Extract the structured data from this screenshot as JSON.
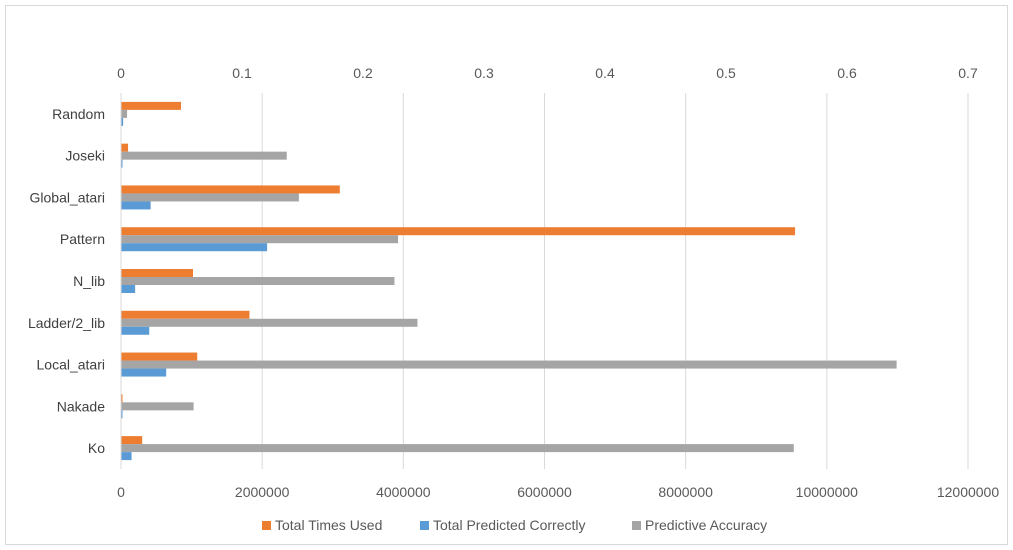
{
  "chart_data": {
    "type": "bar",
    "orientation": "horizontal",
    "categories": [
      "Random",
      "Joseki",
      "Global_atari",
      "Pattern",
      "N_lib",
      "Ladder/2_lib",
      "Local_atari",
      "Nakade",
      "Ko"
    ],
    "series": [
      {
        "name": "Total Times Used",
        "axis": "primary",
        "color": "#ED7D31",
        "values": [
          850000,
          100000,
          3100000,
          9550000,
          1020000,
          1820000,
          1080000,
          20000,
          300000
        ]
      },
      {
        "name": "Total Predicted Correctly",
        "axis": "primary",
        "color": "#5B9BD5",
        "values": [
          30000,
          10000,
          420000,
          2070000,
          200000,
          400000,
          640000,
          10000,
          150000
        ]
      },
      {
        "name": "Predictive Accuracy",
        "axis": "secondary",
        "color": "#A5A5A5",
        "values": [
          0.005,
          0.137,
          0.147,
          0.229,
          0.226,
          0.245,
          0.641,
          0.06,
          0.556
        ]
      }
    ],
    "primary_axis": {
      "position": "bottom",
      "range": [
        0,
        12000000
      ],
      "ticks": [
        "0",
        "2000000",
        "4000000",
        "6000000",
        "8000000",
        "10000000",
        "12000000"
      ]
    },
    "secondary_axis": {
      "position": "top",
      "range": [
        0,
        0.7
      ],
      "ticks": [
        "0",
        "0.1",
        "0.2",
        "0.3",
        "0.4",
        "0.5",
        "0.6",
        "0.7"
      ]
    },
    "grid": true,
    "legend": "bottom",
    "title": ""
  }
}
